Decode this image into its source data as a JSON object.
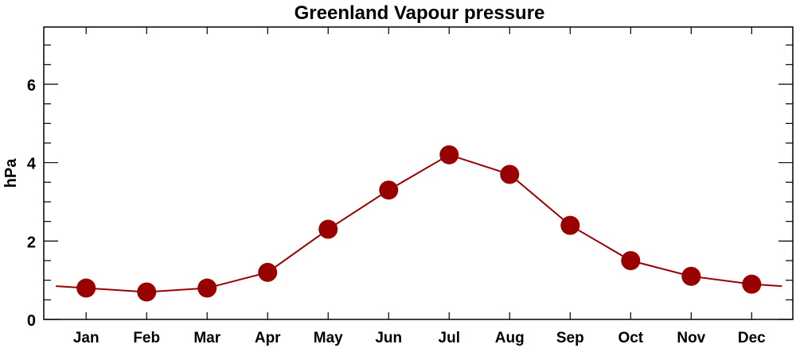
{
  "chart_data": {
    "type": "line",
    "title": "Greenland Vapour pressure",
    "xlabel": "",
    "ylabel": "hPa",
    "categories": [
      "Jan",
      "Feb",
      "Mar",
      "Apr",
      "May",
      "Jun",
      "Jul",
      "Aug",
      "Sep",
      "Oct",
      "Nov",
      "Dec"
    ],
    "series": [
      {
        "name": "Vapour pressure",
        "values": [
          0.8,
          0.7,
          0.8,
          1.2,
          2.3,
          3.3,
          4.2,
          3.7,
          2.4,
          1.5,
          1.1,
          0.9
        ],
        "color": "#990000"
      }
    ],
    "wrap_edge_value": 0.85,
    "xlim": [
      -0.7,
      11.68
    ],
    "ylim": [
      0,
      7.46
    ],
    "yticks": [
      "0",
      "2",
      "4",
      "6"
    ],
    "yminor_step": 0.5,
    "grid": false,
    "legend": "none"
  }
}
